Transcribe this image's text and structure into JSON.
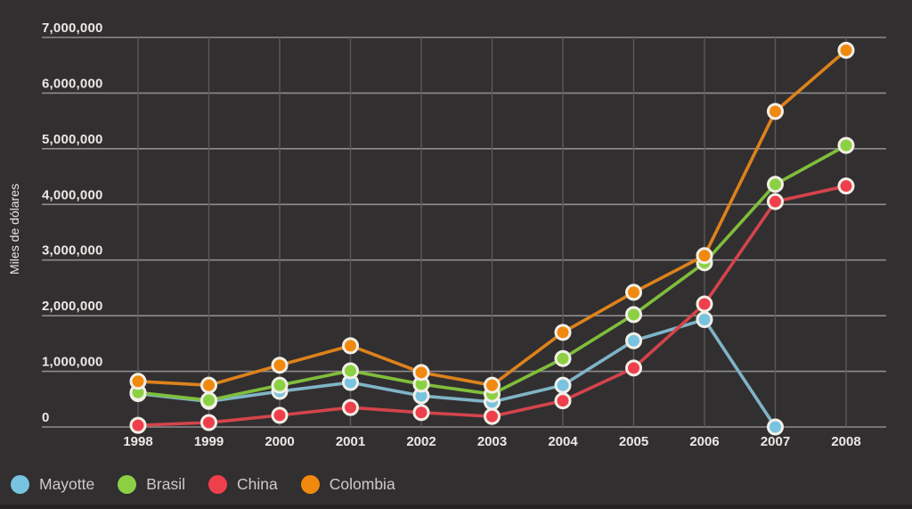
{
  "page": {
    "background": "#322F30",
    "bottom_edge_color": "#252324"
  },
  "chart_data": {
    "type": "line",
    "ylabel": "Miles de dólares",
    "x": [
      1998,
      1999,
      2000,
      2001,
      2002,
      2003,
      2004,
      2005,
      2006,
      2007,
      2008
    ],
    "series": [
      {
        "name": "Mayotte",
        "line_color": "#7FB4C7",
        "point_color": "#77C3E0",
        "values": [
          600000,
          460000,
          640000,
          800000,
          560000,
          450000,
          750000,
          1550000,
          1930000,
          0,
          null
        ]
      },
      {
        "name": "Brasil",
        "line_color": "#7FBE3B",
        "point_color": "#8BD143",
        "values": [
          620000,
          480000,
          750000,
          1010000,
          770000,
          590000,
          1230000,
          2020000,
          2950000,
          4360000,
          5060000
        ]
      },
      {
        "name": "China",
        "line_color": "#D4444B",
        "point_color": "#EF3F4C",
        "values": [
          30000,
          80000,
          210000,
          350000,
          260000,
          190000,
          470000,
          1060000,
          2210000,
          4050000,
          4330000
        ]
      },
      {
        "name": "Colombia",
        "line_color": "#DD821C",
        "point_color": "#F0890E",
        "values": [
          820000,
          750000,
          1110000,
          1460000,
          980000,
          750000,
          1700000,
          2420000,
          3080000,
          5670000,
          6770000
        ]
      }
    ],
    "ylim": [
      0,
      7000000
    ],
    "y_ticks": [
      {
        "value": 0,
        "label": "0"
      },
      {
        "value": 1000000,
        "label": "1,000,000"
      },
      {
        "value": 2000000,
        "label": "2,000,000"
      },
      {
        "value": 3000000,
        "label": "3,000,000"
      },
      {
        "value": 4000000,
        "label": "4,000,000"
      },
      {
        "value": 5000000,
        "label": "5,000,000"
      },
      {
        "value": 6000000,
        "label": "6,000,000"
      },
      {
        "value": 7000000,
        "label": "7,000,000"
      }
    ],
    "grid": true,
    "legend_position": "bottom-left",
    "styles": {
      "grid_h_color": "#8E8C8C",
      "grid_v_color": "#5A5859",
      "tick_text_color": "#EBE9E6",
      "legend_text_color": "#CDCBC9",
      "point_ring_color": "#F2EFE7"
    }
  }
}
